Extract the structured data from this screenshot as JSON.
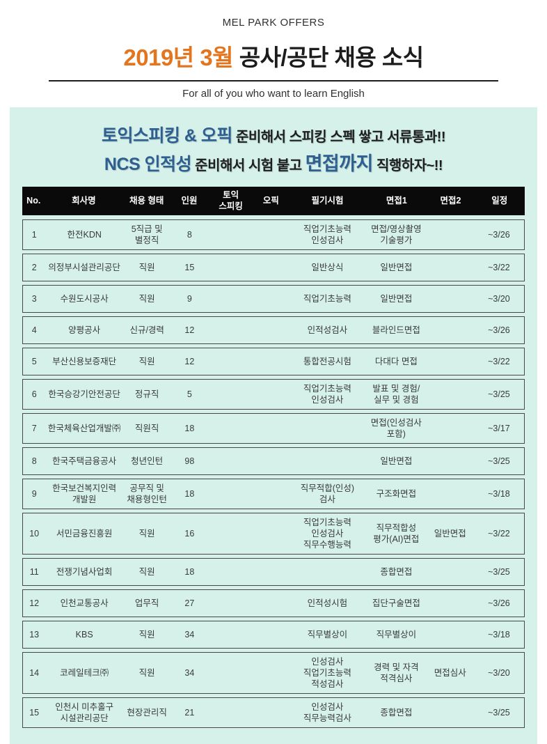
{
  "header": {
    "brand": "MEL PARK OFFERS",
    "title_highlight": "2019년 3월",
    "title_rest": " 공사/공단 채용 소식",
    "subtitle": "For all of you who want to learn English"
  },
  "promo": {
    "line1_highlight": "토익스피킹 & 오픽",
    "line1_rest": " 준비해서 스피킹 스펙 쌓고 서류통과!!",
    "line2_highlight1": "NCS 인적성",
    "line2_mid": " 준비해서 시험 붙고 ",
    "line2_highlight2": "면접까지",
    "line2_rest": " 직행하자~!!"
  },
  "table": {
    "columns": [
      "No.",
      "회사명",
      "채용 형태",
      "인원",
      "토익\n스피킹",
      "오픽",
      "필기시험",
      "면접1",
      "면접2",
      "일정"
    ],
    "fields": [
      "no",
      "company",
      "hire_type",
      "headcount",
      "toeic_speaking",
      "opic",
      "written_test",
      "interview1",
      "interview2",
      "schedule"
    ],
    "rows": [
      {
        "no": "1",
        "company": "한전KDN",
        "hire_type": "5직급 및\n별정직",
        "headcount": "8",
        "toeic_speaking": "",
        "opic": "",
        "written_test": "직업기초능력\n인성검사",
        "interview1": "면접/영상촬영\n기술평가",
        "interview2": "",
        "schedule": "~3/26"
      },
      {
        "no": "2",
        "company": "의정부시설관리공단",
        "hire_type": "직원",
        "headcount": "15",
        "toeic_speaking": "",
        "opic": "",
        "written_test": "일반상식",
        "interview1": "일반면접",
        "interview2": "",
        "schedule": "~3/22"
      },
      {
        "no": "3",
        "company": "수원도시공사",
        "hire_type": "직원",
        "headcount": "9",
        "toeic_speaking": "",
        "opic": "",
        "written_test": "직업기초능력",
        "interview1": "일반면접",
        "interview2": "",
        "schedule": "~3/20"
      },
      {
        "no": "4",
        "company": "양평공사",
        "hire_type": "신규/경력",
        "headcount": "12",
        "toeic_speaking": "",
        "opic": "",
        "written_test": "인적성검사",
        "interview1": "블라인드면접",
        "interview2": "",
        "schedule": "~3/26"
      },
      {
        "no": "5",
        "company": "부산신용보증재단",
        "hire_type": "직원",
        "headcount": "12",
        "toeic_speaking": "",
        "opic": "",
        "written_test": "통합전공시험",
        "interview1": "다대다 면접",
        "interview2": "",
        "schedule": "~3/22"
      },
      {
        "no": "6",
        "company": "한국승강기안전공단",
        "hire_type": "정규직",
        "headcount": "5",
        "toeic_speaking": "",
        "opic": "",
        "written_test": "직업기초능력\n인성검사",
        "interview1": "발표 및 경험/\n실무 및 경험",
        "interview2": "",
        "schedule": "~3/25"
      },
      {
        "no": "7",
        "company": "한국체육산업개발㈜",
        "hire_type": "직원직",
        "headcount": "18",
        "toeic_speaking": "",
        "opic": "",
        "written_test": "",
        "interview1": "면접(인성검사\n포함)",
        "interview2": "",
        "schedule": "~3/17"
      },
      {
        "no": "8",
        "company": "한국주택금융공사",
        "hire_type": "청년인턴",
        "headcount": "98",
        "toeic_speaking": "",
        "opic": "",
        "written_test": "",
        "interview1": "일반면접",
        "interview2": "",
        "schedule": "~3/25"
      },
      {
        "no": "9",
        "company": "한국보건복지인력\n개발원",
        "hire_type": "공무직 및\n채용형인턴",
        "headcount": "18",
        "toeic_speaking": "",
        "opic": "",
        "written_test": "직무적합(인성)\n검사",
        "interview1": "구조화면접",
        "interview2": "",
        "schedule": "~3/18"
      },
      {
        "no": "10",
        "company": "서민금융진흥원",
        "hire_type": "직원",
        "headcount": "16",
        "toeic_speaking": "",
        "opic": "",
        "written_test": "직업기초능력\n인성검사\n직무수행능력",
        "interview1": "직무적합성\n평가(AI)면접",
        "interview2": "일반면접",
        "schedule": "~3/22"
      },
      {
        "no": "11",
        "company": "전쟁기념사업회",
        "hire_type": "직원",
        "headcount": "18",
        "toeic_speaking": "",
        "opic": "",
        "written_test": "",
        "interview1": "종합면접",
        "interview2": "",
        "schedule": "~3/25"
      },
      {
        "no": "12",
        "company": "인천교통공사",
        "hire_type": "업무직",
        "headcount": "27",
        "toeic_speaking": "",
        "opic": "",
        "written_test": "인적성시험",
        "interview1": "집단구술면접",
        "interview2": "",
        "schedule": "~3/26"
      },
      {
        "no": "13",
        "company": "KBS",
        "hire_type": "직원",
        "headcount": "34",
        "toeic_speaking": "",
        "opic": "",
        "written_test": "직무별상이",
        "interview1": "직무별상이",
        "interview2": "",
        "schedule": "~3/18"
      },
      {
        "no": "14",
        "company": "코레일테크㈜",
        "hire_type": "직원",
        "headcount": "34",
        "toeic_speaking": "",
        "opic": "",
        "written_test": "인성검사\n직업기초능력\n적성검사",
        "interview1": "경력 및 자격\n적격심사",
        "interview2": "면접심사",
        "schedule": "~3/20"
      },
      {
        "no": "15",
        "company": "인천시 미추홀구\n시설관리공단",
        "hire_type": "현장관리직",
        "headcount": "21",
        "toeic_speaking": "",
        "opic": "",
        "written_test": "인성검사\n직무능력검사",
        "interview1": "종합면접",
        "interview2": "",
        "schedule": "~3/25"
      }
    ]
  },
  "colors": {
    "card_bg": "#d5f1ea",
    "accent_orange": "#e2751e",
    "accent_blue": "#2e5f90",
    "table_header_bg": "#0a0a0a",
    "row_border": "#474747"
  }
}
